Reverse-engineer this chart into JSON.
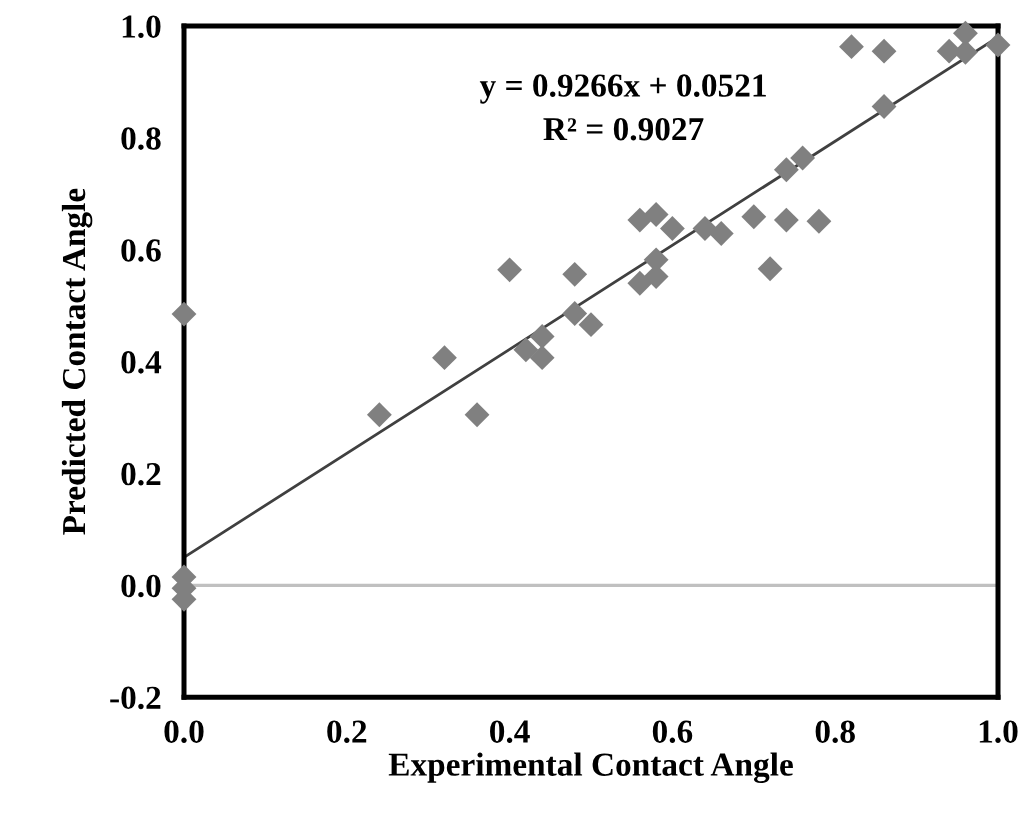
{
  "chart_data": {
    "type": "scatter",
    "xlabel": "Experimental Contact Angle",
    "ylabel": "Predicted Contact Angle",
    "annotations": [
      "y = 0.9266x + 0.0521",
      "R² = 0.9027"
    ],
    "marker": "diamond",
    "grid": false,
    "legend": false,
    "xlim": [
      0,
      1
    ],
    "ylim": [
      -0.2,
      1
    ],
    "xticks": [
      {
        "value": 0,
        "label": "0.0"
      },
      {
        "value": 0.2,
        "label": "0.2"
      },
      {
        "value": 0.4,
        "label": "0.4"
      },
      {
        "value": 0.6,
        "label": "0.6"
      },
      {
        "value": 0.8,
        "label": "0.8"
      },
      {
        "value": 1,
        "label": "1.0"
      }
    ],
    "yticks": [
      {
        "value": -0.2,
        "label": "-0.2"
      },
      {
        "value": 0,
        "label": "0.0"
      },
      {
        "value": 0.2,
        "label": "0.2"
      },
      {
        "value": 0.4,
        "label": "0.4"
      },
      {
        "value": 0.6,
        "label": "0.6"
      },
      {
        "value": 0.8,
        "label": "0.8"
      },
      {
        "value": 1,
        "label": "1.0"
      }
    ],
    "ref_lines": [
      {
        "axis": "y",
        "value": 0,
        "color": "#c0c0c0"
      }
    ],
    "series": [
      {
        "color": "#808080",
        "x": [
          0,
          0,
          0,
          0,
          0.24,
          0.32,
          0.36,
          0.4,
          0.42,
          0.44,
          0.44,
          0.48,
          0.48,
          0.5,
          0.56,
          0.56,
          0.58,
          0.58,
          0.58,
          0.6,
          0.64,
          0.66,
          0.7,
          0.72,
          0.74,
          0.74,
          0.76,
          0.78,
          0.82,
          0.86,
          0.86,
          0.94,
          0.96,
          0.96,
          1.0
        ],
        "values": [
          0.485,
          0.015,
          -0.005,
          -0.025,
          0.305,
          0.407,
          0.305,
          0.564,
          0.421,
          0.445,
          0.407,
          0.556,
          0.486,
          0.466,
          0.653,
          0.54,
          0.663,
          0.582,
          0.552,
          0.638,
          0.638,
          0.629,
          0.659,
          0.566,
          0.743,
          0.653,
          0.764,
          0.651,
          0.963,
          0.955,
          0.856,
          0.955,
          0.987,
          0.953,
          0.966
        ]
      },
      {
        "type": "line",
        "color": "#404040",
        "marker": "none",
        "x": [
          0,
          1
        ],
        "values": [
          0.05,
          0.98
        ]
      }
    ]
  }
}
